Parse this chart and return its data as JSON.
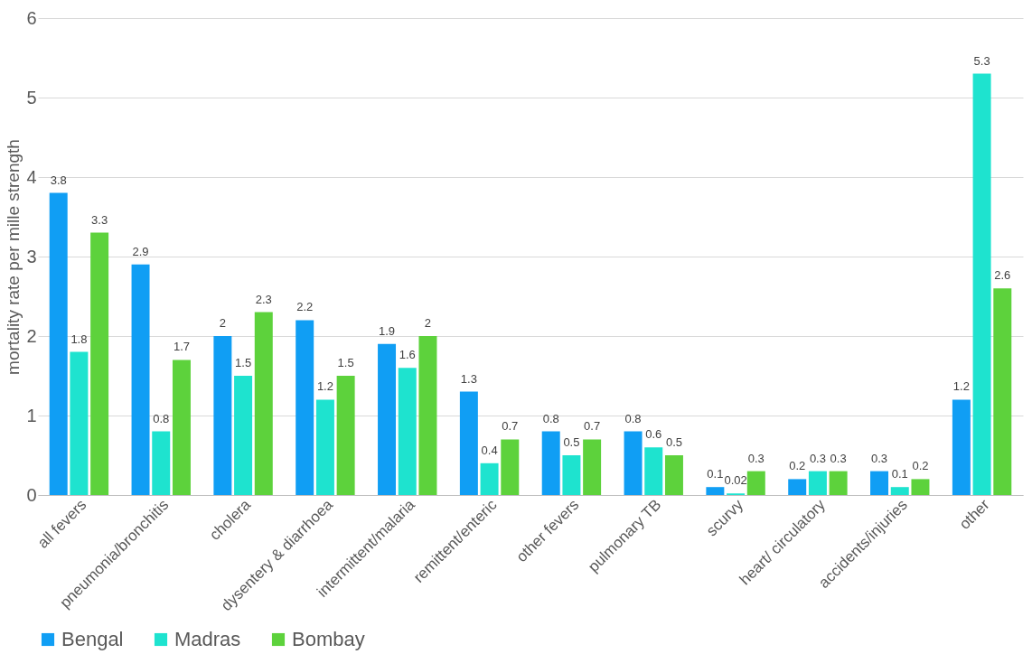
{
  "chart_data": {
    "type": "bar",
    "ylabel": "mortality rate per mille strength",
    "categories": [
      "all fevers",
      "pneumonia/bronchitis",
      "cholera",
      "dysentery & diarrhoea",
      "intermittent/malaria",
      "remittent/enteric",
      "other fevers",
      "pulmonary TB",
      "scurvy",
      "heart/ circulatory",
      "accidents/injuries",
      "other"
    ],
    "series": [
      {
        "name": "Bengal",
        "color": "#109ef4",
        "values": [
          3.8,
          2.9,
          2,
          2.2,
          1.9,
          1.3,
          0.8,
          0.8,
          0.1,
          0.2,
          0.3,
          1.2
        ]
      },
      {
        "name": "Madras",
        "color": "#1ee3cf",
        "values": [
          1.8,
          0.8,
          1.5,
          1.2,
          1.6,
          0.4,
          0.5,
          0.6,
          0.02,
          0.3,
          0.1,
          5.3
        ]
      },
      {
        "name": "Bombay",
        "color": "#5dd23c",
        "values": [
          3.3,
          1.7,
          2.3,
          1.5,
          2,
          0.7,
          0.7,
          0.5,
          0.3,
          0.3,
          0.2,
          2.6
        ]
      }
    ],
    "ylim": [
      0,
      6
    ],
    "yticks": [
      0,
      1,
      2,
      3,
      4,
      5,
      6
    ],
    "grid": "y",
    "legend": "bottom",
    "data_labels": true
  }
}
